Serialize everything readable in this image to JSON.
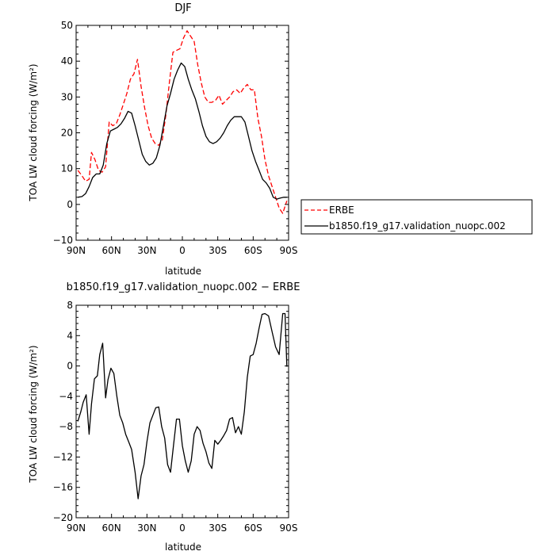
{
  "chart_data": [
    {
      "type": "line",
      "title": "DJF",
      "xlabel": "latitude",
      "ylabel": "TOA LW cloud forcing (W/m²)",
      "xlim": [
        -90,
        90
      ],
      "ylim": [
        -10,
        50
      ],
      "x_ticks": [
        -90,
        -60,
        -30,
        0,
        30,
        60,
        90
      ],
      "x_tick_labels": [
        "90N",
        "60N",
        "30N",
        "0",
        "30S",
        "60S",
        "90S"
      ],
      "y_ticks": [
        -10,
        0,
        10,
        20,
        30,
        40,
        50
      ],
      "y_tick_labels": [
        "−10",
        "0",
        "10",
        "20",
        "30",
        "40",
        "50"
      ],
      "legend_position": "right",
      "series": [
        {
          "name": "ERBE",
          "color": "#ff0000",
          "dash": "dashed",
          "points": [
            [
              -88.5,
              9.5
            ],
            [
              -85,
              8
            ],
            [
              -82,
              6.5
            ],
            [
              -79,
              7
            ],
            [
              -77,
              14.5
            ],
            [
              -74,
              12.5
            ],
            [
              -71,
              9.5
            ],
            [
              -68,
              9
            ],
            [
              -65,
              10.5
            ],
            [
              -62,
              23
            ],
            [
              -59,
              22
            ],
            [
              -56,
              22.5
            ],
            [
              -53,
              25
            ],
            [
              -50,
              28
            ],
            [
              -47,
              31
            ],
            [
              -44,
              35
            ],
            [
              -41,
              36.5
            ],
            [
              -38,
              40.5
            ],
            [
              -35,
              33
            ],
            [
              -32,
              27
            ],
            [
              -29,
              22
            ],
            [
              -26,
              18.5
            ],
            [
              -23,
              17
            ],
            [
              -20,
              16.5
            ],
            [
              -17,
              18
            ],
            [
              -14,
              25
            ],
            [
              -11,
              34
            ],
            [
              -8,
              42.5
            ],
            [
              -5,
              43
            ],
            [
              -2,
              43.5
            ],
            [
              1,
              46.5
            ],
            [
              4,
              48.5
            ],
            [
              7,
              47
            ],
            [
              10,
              45.5
            ],
            [
              13,
              39
            ],
            [
              16,
              34
            ],
            [
              19,
              30
            ],
            [
              22,
              28.5
            ],
            [
              25,
              28.5
            ],
            [
              28,
              29
            ],
            [
              31,
              30.5
            ],
            [
              34,
              28
            ],
            [
              37,
              29
            ],
            [
              40,
              30
            ],
            [
              43,
              31.5
            ],
            [
              46,
              32
            ],
            [
              49,
              31
            ],
            [
              52,
              32.5
            ],
            [
              55,
              33.5
            ],
            [
              58,
              32
            ],
            [
              61,
              32
            ],
            [
              64,
              24
            ],
            [
              67,
              19
            ],
            [
              70,
              12.5
            ],
            [
              73,
              8
            ],
            [
              76,
              5
            ],
            [
              79,
              2
            ],
            [
              82,
              -1
            ],
            [
              85,
              -2.5
            ],
            [
              88.5,
              1
            ]
          ]
        },
        {
          "name": "b1850.f19_g17.validation_nuopc.002",
          "color": "#000000",
          "dash": "solid",
          "points": [
            [
              -88.5,
              2
            ],
            [
              -85,
              2.2
            ],
            [
              -82,
              3
            ],
            [
              -79,
              5
            ],
            [
              -76,
              7.5
            ],
            [
              -73,
              8.5
            ],
            [
              -70,
              8.5
            ],
            [
              -67,
              11
            ],
            [
              -64,
              17
            ],
            [
              -61,
              20.5
            ],
            [
              -58,
              21
            ],
            [
              -55,
              21.5
            ],
            [
              -52,
              22.5
            ],
            [
              -49,
              24
            ],
            [
              -46,
              26
            ],
            [
              -43,
              25.5
            ],
            [
              -40,
              22
            ],
            [
              -37,
              18
            ],
            [
              -34,
              14
            ],
            [
              -31,
              12
            ],
            [
              -28,
              11
            ],
            [
              -25,
              11.5
            ],
            [
              -22,
              13
            ],
            [
              -19,
              16.5
            ],
            [
              -16,
              22
            ],
            [
              -13,
              27.5
            ],
            [
              -10,
              31
            ],
            [
              -7,
              35
            ],
            [
              -4,
              37.5
            ],
            [
              -1,
              39.5
            ],
            [
              2,
              38.5
            ],
            [
              5,
              35
            ],
            [
              8,
              32
            ],
            [
              11,
              29.5
            ],
            [
              14,
              26
            ],
            [
              17,
              22
            ],
            [
              20,
              19
            ],
            [
              23,
              17.5
            ],
            [
              26,
              17
            ],
            [
              29,
              17.5
            ],
            [
              32,
              18.5
            ],
            [
              35,
              20
            ],
            [
              38,
              22
            ],
            [
              41,
              23.5
            ],
            [
              44,
              24.5
            ],
            [
              47,
              24.5
            ],
            [
              50,
              24.5
            ],
            [
              53,
              23
            ],
            [
              56,
              19
            ],
            [
              59,
              15
            ],
            [
              62,
              12
            ],
            [
              65,
              9.5
            ],
            [
              68,
              7
            ],
            [
              71,
              6
            ],
            [
              74,
              4.5
            ],
            [
              77,
              2
            ],
            [
              80,
              1.5
            ],
            [
              83,
              1.8
            ],
            [
              86,
              2
            ],
            [
              88.5,
              2
            ]
          ]
        }
      ]
    },
    {
      "type": "line",
      "title": "b1850.f19_g17.validation_nuopc.002 − ERBE",
      "xlabel": "latitude",
      "ylabel": "TOA LW cloud forcing (W/m²)",
      "xlim": [
        -90,
        90
      ],
      "ylim": [
        -20,
        8
      ],
      "x_ticks": [
        -90,
        -60,
        -30,
        0,
        30,
        60,
        90
      ],
      "x_tick_labels": [
        "90N",
        "60N",
        "30N",
        "0",
        "30S",
        "60S",
        "90S"
      ],
      "y_ticks": [
        -20,
        -16,
        -12,
        -8,
        -4,
        0,
        4,
        8
      ],
      "y_tick_labels": [
        "−20",
        "−16",
        "−12",
        "−8",
        "−4",
        "0",
        "4",
        "8"
      ],
      "series": [
        {
          "color": "#000000",
          "dash": "solid",
          "points": [
            [
              -88.5,
              -7.3
            ],
            [
              -86,
              -6
            ],
            [
              -84,
              -4.8
            ],
            [
              -81.5,
              -3.8
            ],
            [
              -79,
              -9
            ],
            [
              -77,
              -5
            ],
            [
              -74.5,
              -1.7
            ],
            [
              -72,
              -1.3
            ],
            [
              -70,
              1.5
            ],
            [
              -67.5,
              3
            ],
            [
              -65,
              -4.2
            ],
            [
              -63,
              -1.8
            ],
            [
              -60.5,
              -0.3
            ],
            [
              -58,
              -1
            ],
            [
              -55.5,
              -4
            ],
            [
              -53,
              -6.5
            ],
            [
              -50.5,
              -7.5
            ],
            [
              -48,
              -9
            ],
            [
              -45.5,
              -10
            ],
            [
              -43,
              -11
            ],
            [
              -40,
              -14
            ],
            [
              -37.5,
              -17.5
            ],
            [
              -35,
              -14.5
            ],
            [
              -32.5,
              -13
            ],
            [
              -30,
              -10
            ],
            [
              -27.5,
              -7.5
            ],
            [
              -25,
              -6.5
            ],
            [
              -22.5,
              -5.5
            ],
            [
              -20,
              -5.4
            ],
            [
              -17.5,
              -8
            ],
            [
              -15,
              -9.5
            ],
            [
              -12.5,
              -13
            ],
            [
              -10,
              -14
            ],
            [
              -7.5,
              -10.5
            ],
            [
              -5,
              -7
            ],
            [
              -2.5,
              -7
            ],
            [
              0,
              -10.5
            ],
            [
              2.5,
              -12.5
            ],
            [
              5,
              -14
            ],
            [
              7.5,
              -12.5
            ],
            [
              10,
              -9
            ],
            [
              12.5,
              -8
            ],
            [
              15,
              -8.5
            ],
            [
              17.5,
              -10.2
            ],
            [
              20,
              -11.3
            ],
            [
              22.5,
              -12.8
            ],
            [
              25,
              -13.5
            ],
            [
              27.5,
              -9.8
            ],
            [
              30,
              -10.3
            ],
            [
              32.5,
              -9.8
            ],
            [
              35,
              -9.2
            ],
            [
              37.5,
              -8.5
            ],
            [
              40,
              -7
            ],
            [
              42.5,
              -6.8
            ],
            [
              45,
              -8.8
            ],
            [
              47.5,
              -8
            ],
            [
              50,
              -9
            ],
            [
              52.5,
              -6
            ],
            [
              55,
              -1.5
            ],
            [
              57.5,
              1.3
            ],
            [
              60,
              1.5
            ],
            [
              62.5,
              3
            ],
            [
              65,
              5
            ],
            [
              67.5,
              6.8
            ],
            [
              70,
              6.9
            ],
            [
              73,
              6.6
            ],
            [
              76,
              4.5
            ],
            [
              79,
              2.5
            ],
            [
              82,
              1.5
            ],
            [
              85,
              6.9
            ],
            [
              87,
              6.9
            ],
            [
              88.5,
              -0.1
            ]
          ]
        }
      ]
    }
  ]
}
